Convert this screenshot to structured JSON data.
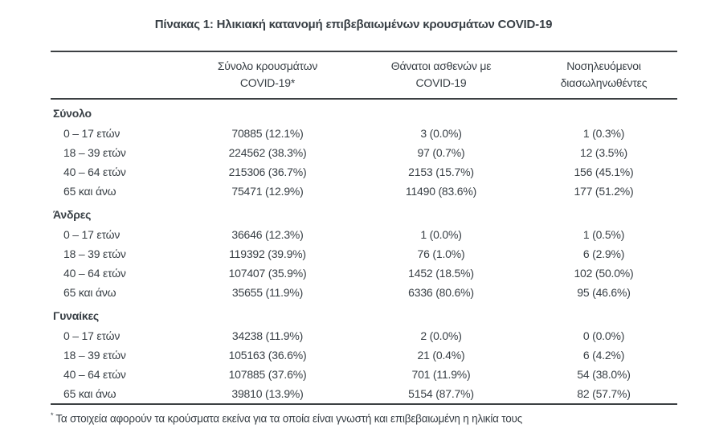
{
  "title": "Πίνακας 1: Ηλικιακή κατανομή επιβεβαιωμένων κρουσμάτων COVID-19",
  "colors": {
    "text": "#383f45",
    "rule": "#3c4043",
    "background": "#ffffff"
  },
  "table": {
    "columns": [
      {
        "id": "age-group",
        "line1": "",
        "line2": ""
      },
      {
        "id": "total-cases",
        "line1": "Σύνολο κρουσμάτων",
        "line2": "COVID-19*"
      },
      {
        "id": "deaths",
        "line1": "Θάνατοι ασθενών με",
        "line2": "COVID-19"
      },
      {
        "id": "intubated",
        "line1": "Νοσηλευόμενοι",
        "line2": "διασωληνωθέντες"
      }
    ],
    "sections": [
      {
        "label": "Σύνολο",
        "rows": [
          {
            "label": "0 – 17 ετών",
            "cases": "70885 (12.1%)",
            "deaths": "3 (0.0%)",
            "intubated": "1 (0.3%)"
          },
          {
            "label": "18 – 39 ετών",
            "cases": "224562 (38.3%)",
            "deaths": "97 (0.7%)",
            "intubated": "12 (3.5%)"
          },
          {
            "label": "40 – 64 ετών",
            "cases": "215306 (36.7%)",
            "deaths": "2153 (15.7%)",
            "intubated": "156 (45.1%)"
          },
          {
            "label": "65 και άνω",
            "cases": "75471 (12.9%)",
            "deaths": "11490 (83.6%)",
            "intubated": "177 (51.2%)"
          }
        ]
      },
      {
        "label": "Άνδρες",
        "rows": [
          {
            "label": "0 – 17 ετών",
            "cases": "36646 (12.3%)",
            "deaths": "1 (0.0%)",
            "intubated": "1 (0.5%)"
          },
          {
            "label": "18 – 39 ετών",
            "cases": "119392 (39.9%)",
            "deaths": "76 (1.0%)",
            "intubated": "6 (2.9%)"
          },
          {
            "label": "40 – 64 ετών",
            "cases": "107407 (35.9%)",
            "deaths": "1452 (18.5%)",
            "intubated": "102 (50.0%)"
          },
          {
            "label": "65 και άνω",
            "cases": "35655 (11.9%)",
            "deaths": "6336 (80.6%)",
            "intubated": "95 (46.6%)"
          }
        ]
      },
      {
        "label": "Γυναίκες",
        "rows": [
          {
            "label": "0 – 17 ετών",
            "cases": "34238 (11.9%)",
            "deaths": "2 (0.0%)",
            "intubated": "0 (0.0%)"
          },
          {
            "label": "18 – 39 ετών",
            "cases": "105163 (36.6%)",
            "deaths": "21 (0.4%)",
            "intubated": "6 (4.2%)"
          },
          {
            "label": "40 – 64 ετών",
            "cases": "107885 (37.6%)",
            "deaths": "701 (11.9%)",
            "intubated": "54 (38.0%)"
          },
          {
            "label": "65 και άνω",
            "cases": "39810 (13.9%)",
            "deaths": "5154 (87.7%)",
            "intubated": "82 (57.7%)"
          }
        ]
      }
    ],
    "footnote_marker": "*",
    "footnote": "Τα στοιχεία αφορούν τα κρούσματα εκείνα για τα οποία είναι γνωστή και επιβεβαιωμένη η ηλικία τους"
  }
}
